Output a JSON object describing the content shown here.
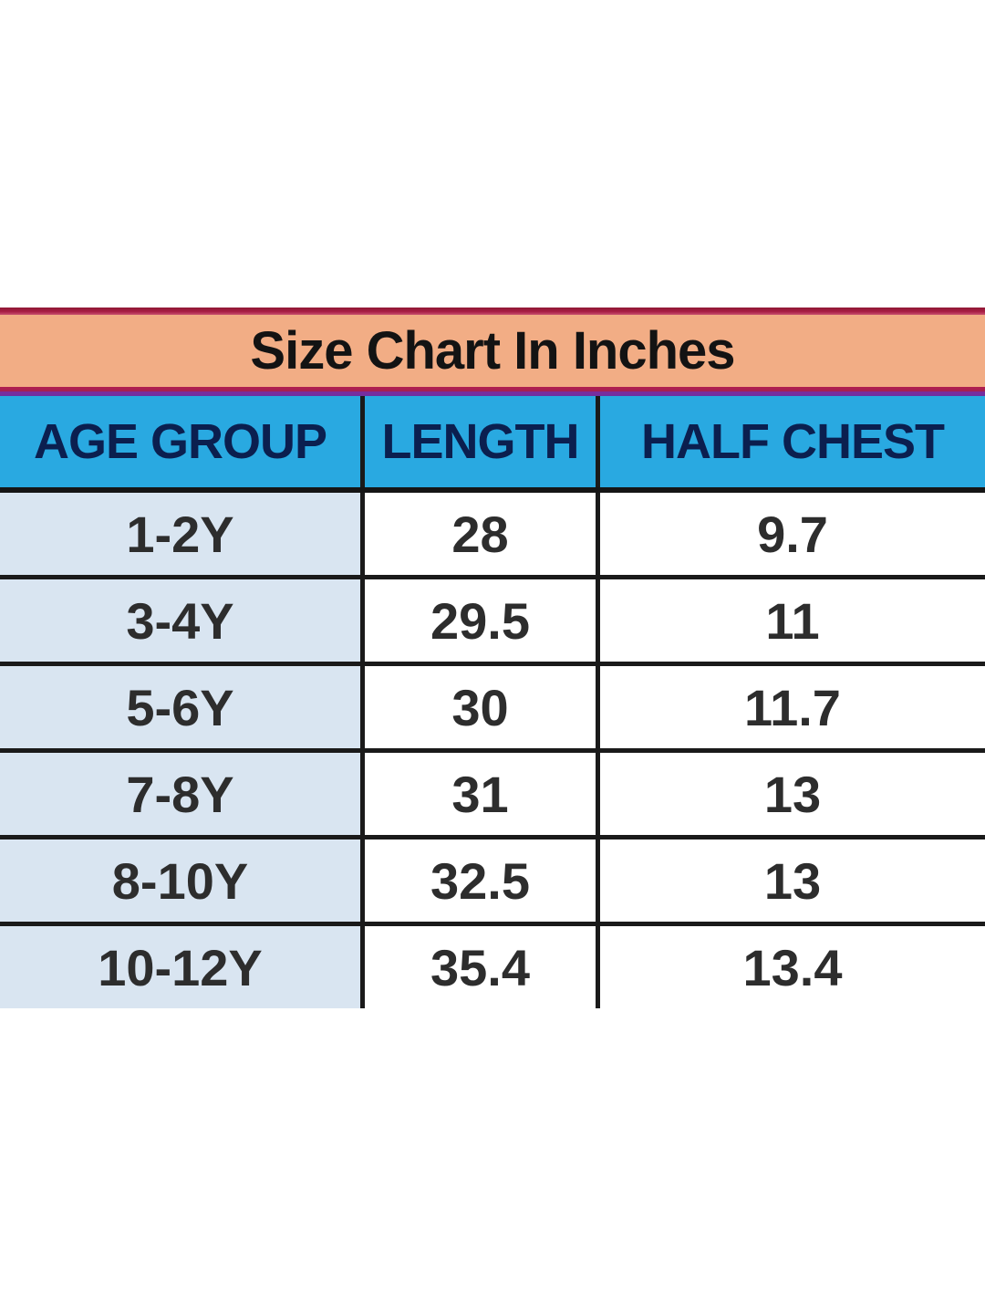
{
  "title": "Size Chart In Inches",
  "table": {
    "columns": [
      "AGE GROUP",
      "LENGTH",
      "HALF CHEST"
    ],
    "rows": [
      {
        "age_group": "1-2Y",
        "length": "28",
        "half_chest": "9.7"
      },
      {
        "age_group": "3-4Y",
        "length": "29.5",
        "half_chest": "11"
      },
      {
        "age_group": "5-6Y",
        "length": "30",
        "half_chest": "11.7"
      },
      {
        "age_group": "7-8Y",
        "length": "31",
        "half_chest": "13"
      },
      {
        "age_group": "8-10Y",
        "length": "32.5",
        "half_chest": "13"
      },
      {
        "age_group": "10-12Y",
        "length": "35.4",
        "half_chest": "13.4"
      }
    ]
  },
  "colors": {
    "title_band_bg": "#f2ad85",
    "title_band_border_top": "#a81e44",
    "title_band_border_bottom_crimson": "#a6204f",
    "title_band_border_bottom_purple": "#6f2fa0",
    "header_row_bg": "#29a9e1",
    "header_text": "#0b1f4f",
    "first_column_bg": "#d9e5f1",
    "grid_border": "#1a1a1a",
    "data_text": "#2d2d2d",
    "page_bg": "#ffffff"
  },
  "chart_data": {
    "type": "table",
    "title": "Size Chart In Inches",
    "units": "inches",
    "columns": [
      "AGE GROUP",
      "LENGTH",
      "HALF CHEST"
    ],
    "rows": [
      [
        "1-2Y",
        28,
        9.7
      ],
      [
        "3-4Y",
        29.5,
        11
      ],
      [
        "5-6Y",
        30,
        11.7
      ],
      [
        "7-8Y",
        31,
        13
      ],
      [
        "8-10Y",
        32.5,
        13
      ],
      [
        "10-12Y",
        35.4,
        13.4
      ]
    ]
  }
}
